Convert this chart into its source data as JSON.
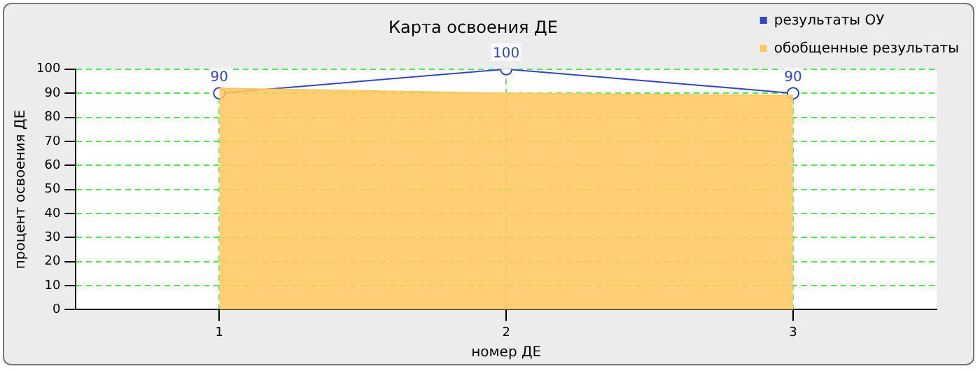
{
  "chart_data": {
    "type": "line",
    "title": "Карта освоения ДЕ",
    "xlabel": "номер ДЕ",
    "ylabel": "процент освоения ДЕ",
    "x": [
      1,
      2,
      3
    ],
    "xlim": [
      0.5,
      3.5
    ],
    "xticks": [
      1,
      2,
      3
    ],
    "ylim": [
      0,
      100
    ],
    "yticks": [
      0,
      10,
      20,
      30,
      40,
      50,
      60,
      70,
      80,
      90,
      100
    ],
    "grid": true,
    "legend": "top right",
    "line_style": "solid",
    "series": [
      {
        "name": "результаты ОУ",
        "type": "line",
        "color": "#3344cc",
        "marker": "circle",
        "values": [
          90,
          100,
          90
        ],
        "value_labels": [
          "90",
          "100",
          "90"
        ]
      },
      {
        "name": "обобщенные результаты",
        "type": "area",
        "color": "#ffc860",
        "marker": "none",
        "values": [
          92,
          90,
          89
        ]
      }
    ]
  }
}
